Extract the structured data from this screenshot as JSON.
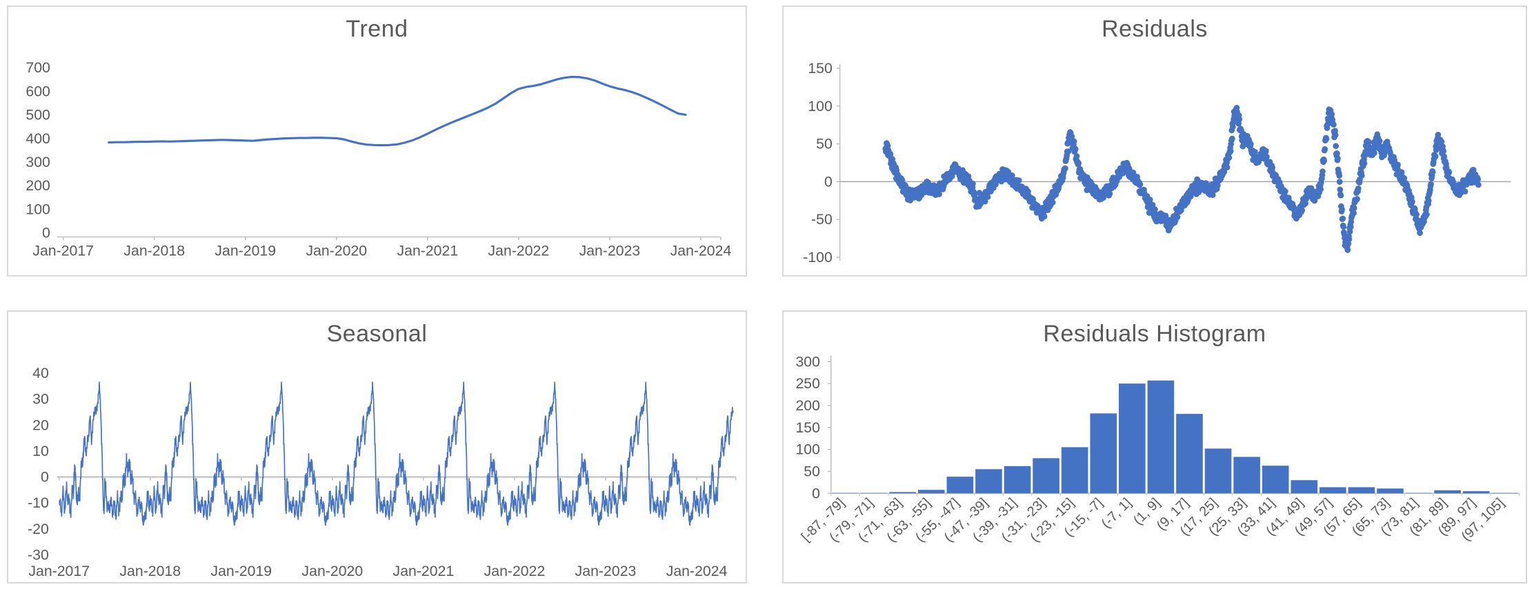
{
  "colors": {
    "series_blue": "#4472C4",
    "title_gray": "#595959",
    "label_gray": "#595959",
    "axis_line_gray": "#BFBFBF",
    "zero_line_gray": "#A6A6A6",
    "panel_border": "#D9D9D9"
  },
  "chart_data": [
    {
      "id": "trend",
      "type": "line",
      "title": "Trend",
      "ylabel": "",
      "xlabel": "",
      "grid": false,
      "legend": "none",
      "ylim": [
        0,
        700
      ],
      "y_ticks": [
        700,
        600,
        500,
        400,
        300,
        200,
        100,
        0
      ],
      "x_tick_labels": [
        "Jan-2017",
        "Jan-2018",
        "Jan-2019",
        "Jan-2020",
        "Jan-2021",
        "Jan-2022",
        "Jan-2023",
        "Jan-2024"
      ],
      "x_axis_start_year": 2017,
      "series_start_year": 2017.5,
      "series_step_months": 1,
      "values": [
        383,
        384,
        384,
        385,
        386,
        386,
        387,
        388,
        387,
        388,
        389,
        390,
        391,
        392,
        393,
        394,
        393,
        392,
        391,
        390,
        393,
        396,
        398,
        400,
        401,
        402,
        402,
        403,
        403,
        402,
        401,
        396,
        387,
        379,
        374,
        372,
        371,
        372,
        375,
        382,
        392,
        405,
        420,
        436,
        451,
        465,
        478,
        491,
        504,
        517,
        531,
        548,
        570,
        592,
        610,
        618,
        623,
        630,
        640,
        650,
        657,
        661,
        660,
        655,
        646,
        633,
        621,
        612,
        605,
        596,
        584,
        570,
        555,
        539,
        522,
        506,
        500
      ]
    },
    {
      "id": "residuals",
      "type": "scatter",
      "title": "Residuals",
      "ylabel": "",
      "xlabel": "",
      "grid": false,
      "legend": "none",
      "ylim": [
        -100,
        150
      ],
      "y_ticks": [
        150,
        100,
        50,
        0,
        -50,
        -100
      ],
      "x_axis_span_years": [
        2017.0,
        2024.45
      ],
      "data_span_years": [
        2017.5,
        2023.95
      ],
      "points_approx": 1560,
      "noise_sd": 8,
      "anchor_note": "local mean of residual cloud, x = months since Jul-2017",
      "anchors": [
        [
          0,
          48
        ],
        [
          0.7,
          30
        ],
        [
          1.5,
          8
        ],
        [
          2.5,
          -12
        ],
        [
          3.5,
          -20
        ],
        [
          4.5,
          -14
        ],
        [
          5.5,
          -6
        ],
        [
          6.5,
          -14
        ],
        [
          7.5,
          -4
        ],
        [
          8.5,
          8
        ],
        [
          9,
          18
        ],
        [
          9.5,
          14
        ],
        [
          10.5,
          4
        ],
        [
          11.5,
          -10
        ],
        [
          12,
          -30
        ],
        [
          13.5,
          -14
        ],
        [
          14.5,
          2
        ],
        [
          15.5,
          10
        ],
        [
          16.5,
          4
        ],
        [
          17.5,
          -6
        ],
        [
          18.5,
          -16
        ],
        [
          19.5,
          -28
        ],
        [
          20.5,
          -42
        ],
        [
          21.5,
          -30
        ],
        [
          22.5,
          -10
        ],
        [
          23.5,
          12
        ],
        [
          24.3,
          64
        ],
        [
          25,
          38
        ],
        [
          25.7,
          12
        ],
        [
          26.5,
          -2
        ],
        [
          27.5,
          -14
        ],
        [
          28.5,
          -18
        ],
        [
          29.5,
          -8
        ],
        [
          30.5,
          4
        ],
        [
          31.5,
          22
        ],
        [
          32.5,
          8
        ],
        [
          33.5,
          -8
        ],
        [
          34.5,
          -28
        ],
        [
          35.5,
          -42
        ],
        [
          36.5,
          -50
        ],
        [
          37.5,
          -58
        ],
        [
          38.5,
          -40
        ],
        [
          39.5,
          -24
        ],
        [
          40.5,
          -10
        ],
        [
          41.5,
          -4
        ],
        [
          42.5,
          -14
        ],
        [
          43.5,
          -2
        ],
        [
          44.5,
          14
        ],
        [
          45.3,
          40
        ],
        [
          46,
          96
        ],
        [
          46.4,
          88
        ],
        [
          47,
          52
        ],
        [
          47.6,
          60
        ],
        [
          48.3,
          38
        ],
        [
          49,
          28
        ],
        [
          49.7,
          42
        ],
        [
          50.5,
          24
        ],
        [
          51.5,
          2
        ],
        [
          52.5,
          -20
        ],
        [
          53.5,
          -34
        ],
        [
          54.3,
          -46
        ],
        [
          55,
          -28
        ],
        [
          55.7,
          -12
        ],
        [
          56.5,
          -22
        ],
        [
          57.3,
          -4
        ],
        [
          58,
          62
        ],
        [
          58.4,
          96
        ],
        [
          59,
          70
        ],
        [
          59.6,
          18
        ],
        [
          60,
          -35
        ],
        [
          60.4,
          -78
        ],
        [
          60.8,
          -86
        ],
        [
          61.3,
          -50
        ],
        [
          62,
          -15
        ],
        [
          62.7,
          20
        ],
        [
          63.4,
          48
        ],
        [
          64,
          40
        ],
        [
          64.7,
          55
        ],
        [
          65.4,
          38
        ],
        [
          66,
          48
        ],
        [
          66.7,
          30
        ],
        [
          67.5,
          12
        ],
        [
          68.3,
          -2
        ],
        [
          69,
          -20
        ],
        [
          69.7,
          -45
        ],
        [
          70.3,
          -60
        ],
        [
          71,
          -48
        ],
        [
          71.6,
          -15
        ],
        [
          72.2,
          35
        ],
        [
          72.7,
          58
        ],
        [
          73.2,
          42
        ],
        [
          73.8,
          18
        ],
        [
          74.5,
          -2
        ],
        [
          75.2,
          -14
        ],
        [
          76,
          -6
        ],
        [
          76.8,
          4
        ],
        [
          77.4,
          8
        ],
        [
          78,
          -2
        ]
      ]
    },
    {
      "id": "seasonal",
      "type": "line",
      "title": "Seasonal",
      "ylabel": "",
      "xlabel": "",
      "grid": false,
      "legend": "none",
      "ylim": [
        -30,
        40
      ],
      "y_ticks": [
        40,
        30,
        20,
        10,
        0,
        -10,
        -20,
        -30
      ],
      "x_tick_labels": [
        "Jan-2017",
        "Jan-2018",
        "Jan-2019",
        "Jan-2020",
        "Jan-2021",
        "Jan-2022",
        "Jan-2023",
        "Jan-2024"
      ],
      "x_span_years": [
        2017.0,
        2024.4
      ],
      "pattern_note": "identical seasonal profile repeated each year, x = fraction of year",
      "year_profile": [
        [
          0.0,
          -11
        ],
        [
          0.02,
          -13
        ],
        [
          0.04,
          -7
        ],
        [
          0.06,
          -12
        ],
        [
          0.08,
          -5
        ],
        [
          0.1,
          -9
        ],
        [
          0.12,
          -13
        ],
        [
          0.14,
          -8
        ],
        [
          0.155,
          -4
        ],
        [
          0.165,
          4
        ],
        [
          0.18,
          -3
        ],
        [
          0.2,
          -10
        ],
        [
          0.22,
          -6
        ],
        [
          0.24,
          2
        ],
        [
          0.26,
          9
        ],
        [
          0.28,
          14
        ],
        [
          0.3,
          9
        ],
        [
          0.32,
          17
        ],
        [
          0.335,
          23
        ],
        [
          0.35,
          15
        ],
        [
          0.37,
          20
        ],
        [
          0.39,
          27
        ],
        [
          0.405,
          24
        ],
        [
          0.425,
          31
        ],
        [
          0.44,
          34
        ],
        [
          0.455,
          26
        ],
        [
          0.468,
          8
        ],
        [
          0.478,
          -6
        ],
        [
          0.49,
          -12
        ],
        [
          0.5,
          -3
        ],
        [
          0.52,
          -8
        ],
        [
          0.54,
          -14
        ],
        [
          0.56,
          -9
        ],
        [
          0.58,
          -13
        ],
        [
          0.6,
          -11
        ],
        [
          0.62,
          -14
        ],
        [
          0.64,
          -9
        ],
        [
          0.66,
          -12
        ],
        [
          0.68,
          -8
        ],
        [
          0.7,
          -3
        ],
        [
          0.72,
          1
        ],
        [
          0.74,
          4
        ],
        [
          0.76,
          5
        ],
        [
          0.78,
          2
        ],
        [
          0.8,
          -2
        ],
        [
          0.82,
          -6
        ],
        [
          0.84,
          -10
        ],
        [
          0.86,
          -13
        ],
        [
          0.88,
          -9
        ],
        [
          0.9,
          -12
        ],
        [
          0.92,
          -16
        ],
        [
          0.935,
          -18
        ],
        [
          0.95,
          -12
        ],
        [
          0.97,
          -8
        ],
        [
          0.99,
          -10
        ],
        [
          1.0,
          -11
        ]
      ]
    },
    {
      "id": "residuals_histogram",
      "type": "bar",
      "title": "Residuals Histogram",
      "ylabel": "",
      "xlabel": "",
      "grid": false,
      "legend": "none",
      "ylim": [
        0,
        300
      ],
      "y_ticks": [
        300,
        250,
        200,
        150,
        100,
        50,
        0
      ],
      "categories": [
        "[-87, -79]",
        "(-79, -71]",
        "(-71, -63]",
        "(-63, -55]",
        "(-55, -47]",
        "(-47, -39]",
        "(-39, -31]",
        "(-31, -23]",
        "(-23, -15]",
        "(-15, -7]",
        "(-7, 1]",
        "(1, 9]",
        "(9, 17]",
        "(17, 25]",
        "(25, 33]",
        "(33, 41]",
        "(41, 49]",
        "(49, 57]",
        "(57, 65]",
        "(65, 73]",
        "(73, 81]",
        "(81, 89]",
        "(89, 97]",
        "(97, 105]"
      ],
      "values": [
        1,
        1,
        3,
        8,
        38,
        55,
        62,
        80,
        105,
        182,
        250,
        257,
        181,
        102,
        83,
        63,
        30,
        14,
        14,
        11,
        1,
        7,
        5,
        1
      ]
    }
  ]
}
